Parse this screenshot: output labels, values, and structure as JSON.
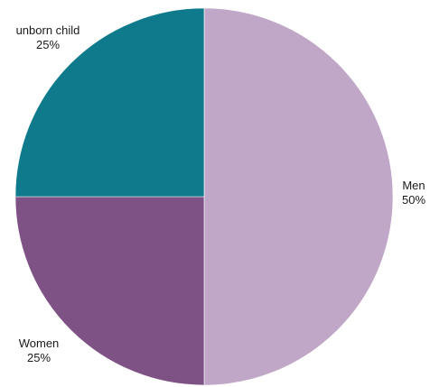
{
  "chart_data": {
    "type": "pie",
    "start_angle_deg": 0,
    "direction": "clockwise",
    "slices": [
      {
        "label": "Men",
        "value": 50,
        "value_label": "50%",
        "color": "#c0a6c7"
      },
      {
        "label": "Women",
        "value": 25,
        "value_label": "25%",
        "color": "#7f5286"
      },
      {
        "label": "unborn child",
        "value": 25,
        "value_label": "25%",
        "color": "#0e7a8c"
      }
    ]
  }
}
